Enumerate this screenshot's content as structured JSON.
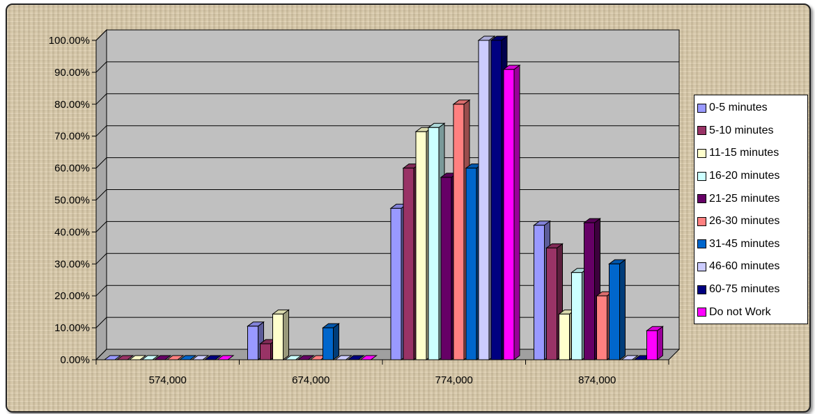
{
  "chart_data": {
    "type": "bar",
    "style": "3d-clustered-column",
    "categories": [
      "574,000",
      "674,000",
      "774,000",
      "874,000"
    ],
    "y_ticks": [
      "0.00%",
      "10.00%",
      "20.00%",
      "30.00%",
      "40.00%",
      "50.00%",
      "60.00%",
      "70.00%",
      "80.00%",
      "90.00%",
      "100.00%"
    ],
    "ylim": [
      0,
      100
    ],
    "grid": true,
    "legend_position": "right",
    "series": [
      {
        "name": "0-5 minutes",
        "color": "#9999ff",
        "values": [
          0,
          10.5,
          47.4,
          42.1
        ]
      },
      {
        "name": "5-10 minutes",
        "color": "#993366",
        "values": [
          0,
          5.0,
          60.0,
          35.0
        ]
      },
      {
        "name": "11-15 minutes",
        "color": "#ffffcc",
        "values": [
          0,
          14.3,
          71.4,
          14.3
        ]
      },
      {
        "name": "16-20 minutes",
        "color": "#ccffff",
        "values": [
          0,
          0,
          72.7,
          27.3
        ]
      },
      {
        "name": "21-25 minutes",
        "color": "#660066",
        "values": [
          0,
          0,
          57.1,
          42.9
        ]
      },
      {
        "name": "26-30 minutes",
        "color": "#ff8080",
        "values": [
          0,
          0,
          80.0,
          20.0
        ]
      },
      {
        "name": "31-45 minutes",
        "color": "#0066cc",
        "values": [
          0,
          10.0,
          60.0,
          30.0
        ]
      },
      {
        "name": "46-60 minutes",
        "color": "#ccccff",
        "values": [
          0,
          0,
          100.0,
          0
        ]
      },
      {
        "name": "60-75 minutes",
        "color": "#000080",
        "values": [
          0,
          0,
          100.0,
          0
        ]
      },
      {
        "name": "Do not Work",
        "color": "#ff00ff",
        "values": [
          0,
          0,
          90.9,
          9.1
        ]
      }
    ]
  }
}
